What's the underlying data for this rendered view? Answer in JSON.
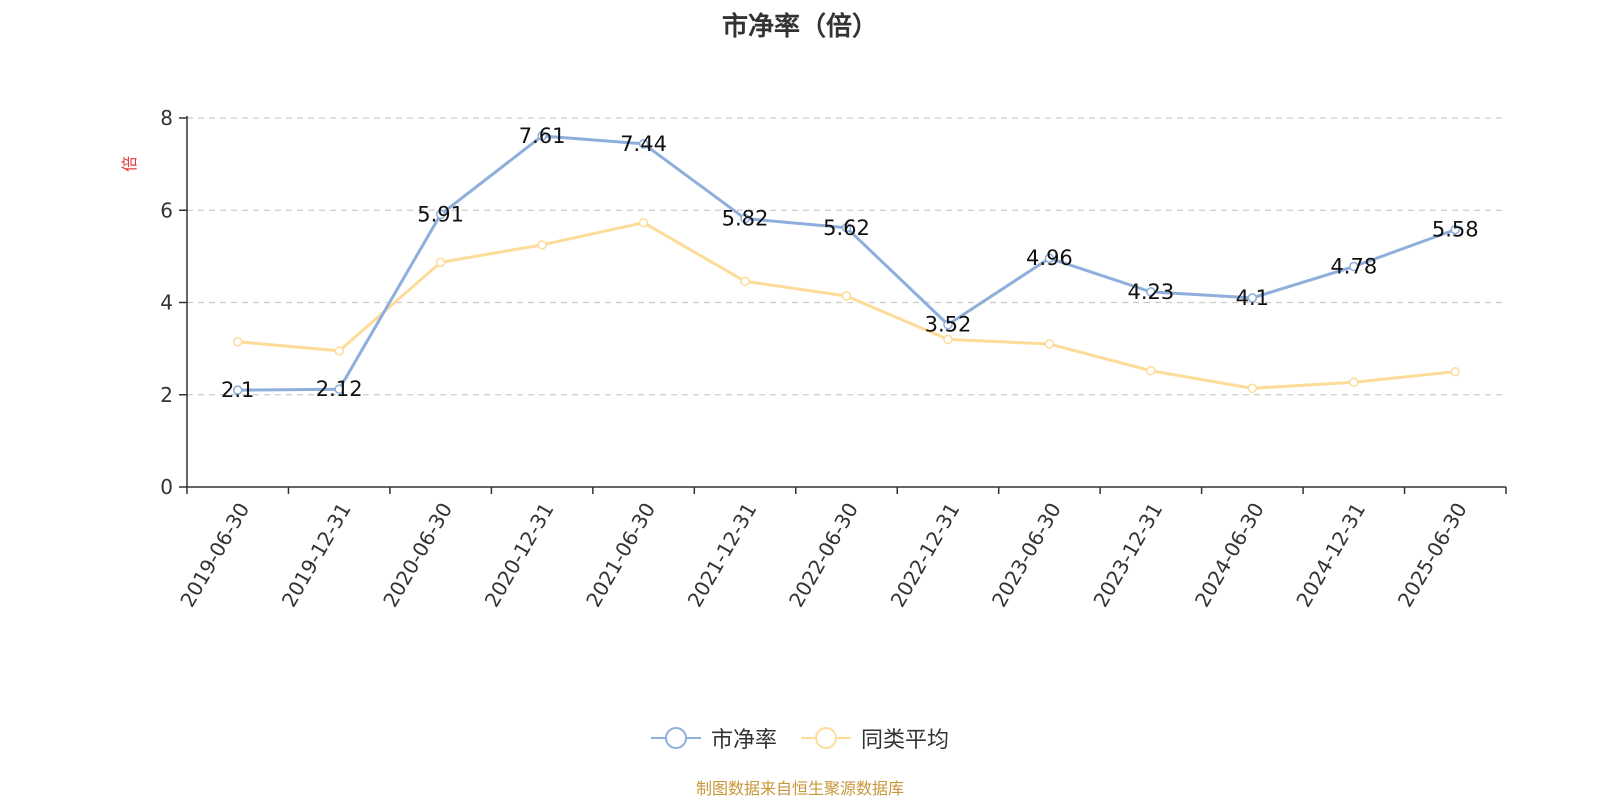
{
  "title": "市净率（倍）",
  "y_unit": "倍",
  "source_note": "制图数据来自恒生聚源数据库",
  "legend": [
    {
      "name": "市净率",
      "color": "#8eaedb"
    },
    {
      "name": "同类平均",
      "color": "#fddc99"
    }
  ],
  "chart_data": {
    "type": "line",
    "title": "市净率（倍）",
    "ylabel": "倍",
    "xlabel": "",
    "ylim": [
      0,
      8
    ],
    "yticks": [
      0,
      2,
      4,
      6,
      8
    ],
    "grid": true,
    "legend_position": "bottom",
    "categories": [
      "2019-06-30",
      "2019-12-31",
      "2020-06-30",
      "2020-12-31",
      "2021-06-30",
      "2021-12-31",
      "2022-06-30",
      "2022-12-31",
      "2023-06-30",
      "2023-12-31",
      "2024-06-30",
      "2024-12-31",
      "2025-06-30"
    ],
    "series": [
      {
        "name": "市净率",
        "color": "#8eaedb",
        "show_labels": true,
        "values": [
          2.1,
          2.12,
          5.91,
          7.61,
          7.44,
          5.82,
          5.62,
          3.52,
          4.96,
          4.23,
          4.1,
          4.78,
          5.58
        ]
      },
      {
        "name": "同类平均",
        "color": "#fddc99",
        "show_labels": false,
        "values": [
          3.15,
          2.95,
          4.87,
          5.25,
          5.73,
          4.46,
          4.14,
          3.2,
          3.1,
          2.52,
          2.14,
          2.27,
          2.5
        ]
      }
    ]
  }
}
